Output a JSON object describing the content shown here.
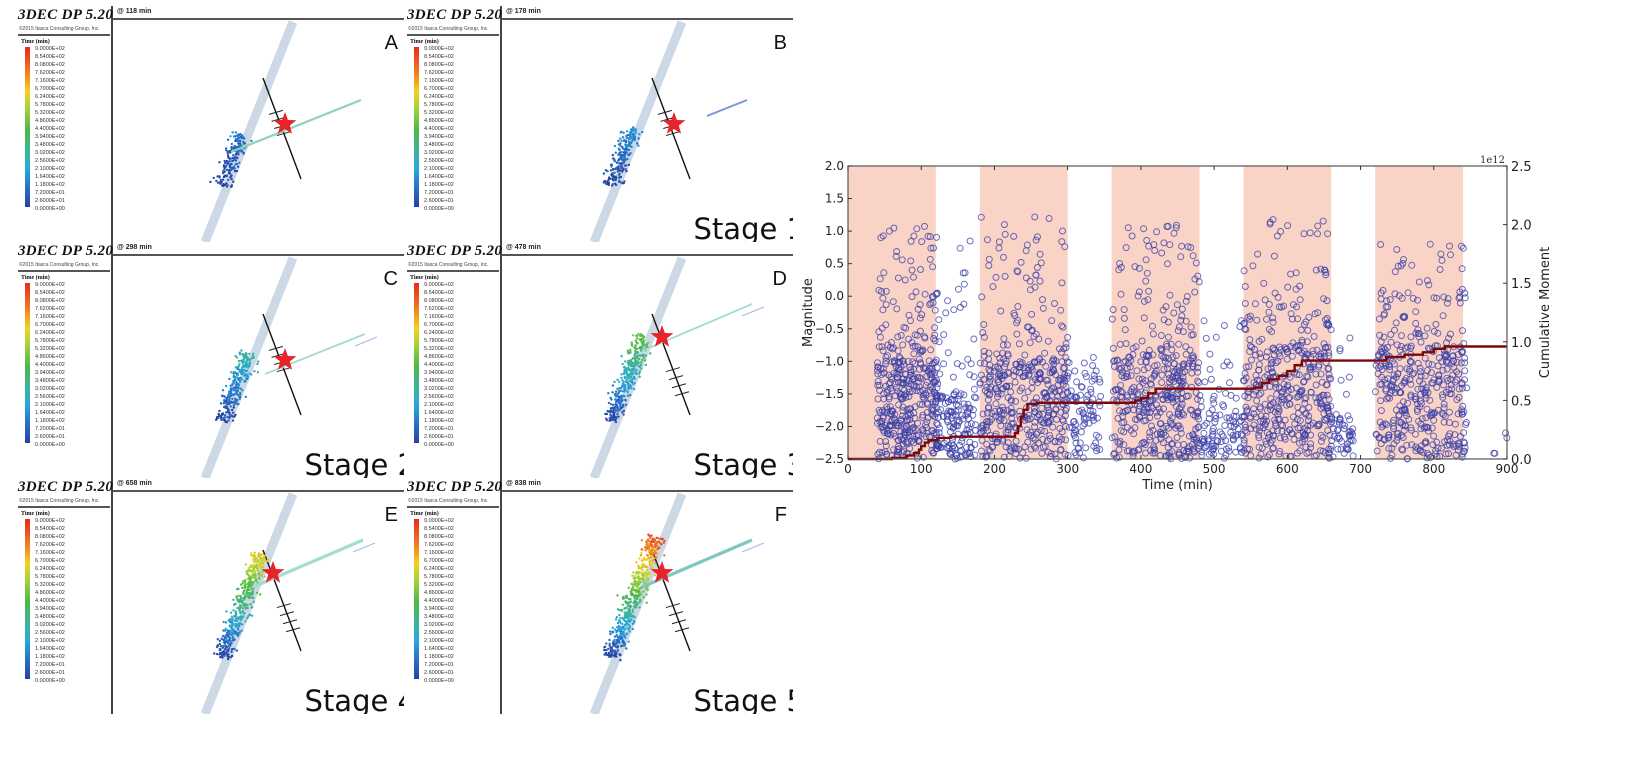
{
  "figure": {
    "software_title": "3DEC  DP 5.20",
    "copyright": "©2015 Itasca Consulting Group, Inc.",
    "legend_heading": "Time (min)",
    "legend_values": [
      "9.0000E+02",
      "8.5400E+02",
      "8.0800E+02",
      "7.6200E+02",
      "7.1600E+02",
      "6.7000E+02",
      "6.2400E+02",
      "5.7800E+02",
      "5.3200E+02",
      "4.8600E+02",
      "4.4000E+02",
      "3.9400E+02",
      "3.4800E+02",
      "3.0200E+02",
      "2.5600E+02",
      "2.1000E+02",
      "1.6400E+02",
      "1.1800E+02",
      "7.2000E+01",
      "2.6000E+01",
      "0.0000E+00"
    ],
    "colors": {
      "star": "#e8232a",
      "fault_band": "#ccd8e6",
      "well": "#111111",
      "scatter_series": "#3a3fa8",
      "cumulative_line": "#7a0a0a",
      "stage_shade": "#f9d4c6"
    },
    "panels": [
      {
        "letter": "A",
        "time_label": "@ 118 min",
        "stage_label": "",
        "progress": 0.13
      },
      {
        "letter": "B",
        "time_label": "@ 178 min",
        "stage_label": "Stage 1",
        "progress": 0.2
      },
      {
        "letter": "C",
        "time_label": "@ 298 min",
        "stage_label": "Stage 2",
        "progress": 0.33
      },
      {
        "letter": "D",
        "time_label": "@ 478 min",
        "stage_label": "Stage 3",
        "progress": 0.53
      },
      {
        "letter": "E",
        "time_label": "@ 658 min",
        "stage_label": "Stage 4",
        "progress": 0.73
      },
      {
        "letter": "F",
        "time_label": "@ 838 min",
        "stage_label": "Stage 5",
        "progress": 0.93
      }
    ]
  },
  "chart_data": {
    "type": "scatter",
    "title": "",
    "xlabel": "Time (min)",
    "ylabel": "Magnitude",
    "y2label": "Cumulative Moment",
    "y2_multiplier_label": "1e12",
    "xlim": [
      0,
      900
    ],
    "ylim": [
      -2.5,
      2.0
    ],
    "y2lim": [
      0.0,
      2.5
    ],
    "xticks": [
      "0",
      "100",
      "200",
      "300",
      "400",
      "500",
      "600",
      "700",
      "800",
      "900"
    ],
    "yticks": [
      "2.0",
      "1.5",
      "1.0",
      "0.5",
      "0.0",
      "−0.5",
      "−1.0",
      "−1.5",
      "−2.0",
      "−2.5"
    ],
    "y2ticks": [
      "2.5",
      "2.0",
      "1.5",
      "1.0",
      "0.5",
      "0.0"
    ],
    "grid": false,
    "injection_periods": [
      [
        0,
        120
      ],
      [
        180,
        300
      ],
      [
        360,
        480
      ],
      [
        540,
        660
      ],
      [
        720,
        840
      ]
    ],
    "series": [
      {
        "name": "Magnitude",
        "marker": "open-circle",
        "clusters": [
          {
            "t_range": [
              40,
              125
            ],
            "mag_range": [
              -2.5,
              1.1
            ],
            "dense_below": -1.0,
            "count": 420
          },
          {
            "t_range": [
              120,
              175
            ],
            "mag_range": [
              -2.5,
              0.85
            ],
            "dense_below": -1.5,
            "count": 150
          },
          {
            "t_range": [
              180,
              300
            ],
            "mag_range": [
              -2.5,
              1.3
            ],
            "dense_below": -1.0,
            "count": 420
          },
          {
            "t_range": [
              295,
              345
            ],
            "mag_range": [
              -2.5,
              -0.85
            ],
            "dense_below": -1.5,
            "count": 90
          },
          {
            "t_range": [
              360,
              480
            ],
            "mag_range": [
              -2.5,
              1.1
            ],
            "dense_below": -0.9,
            "count": 420
          },
          {
            "t_range": [
              475,
              540
            ],
            "mag_range": [
              -2.5,
              -0.35
            ],
            "dense_below": -1.8,
            "count": 110
          },
          {
            "t_range": [
              540,
              660
            ],
            "mag_range": [
              -2.5,
              1.2
            ],
            "dense_below": -0.8,
            "count": 420
          },
          {
            "t_range": [
              655,
              690
            ],
            "mag_range": [
              -2.5,
              -0.5
            ],
            "dense_below": -1.8,
            "count": 60
          },
          {
            "t_range": [
              720,
              845
            ],
            "mag_range": [
              -2.5,
              0.8
            ],
            "dense_below": -0.8,
            "count": 420
          },
          {
            "t_range": [
              880,
              900
            ],
            "mag_range": [
              -2.5,
              -2.1
            ],
            "dense_below": -2.1,
            "count": 4
          }
        ]
      },
      {
        "name": "Cumulative Moment",
        "axis": "right",
        "units": "1e12",
        "step_points": [
          [
            0,
            0.0
          ],
          [
            35,
            0.0
          ],
          [
            60,
            0.01
          ],
          [
            80,
            0.03
          ],
          [
            90,
            0.05
          ],
          [
            97,
            0.08
          ],
          [
            100,
            0.11
          ],
          [
            105,
            0.14
          ],
          [
            110,
            0.16
          ],
          [
            122,
            0.18
          ],
          [
            140,
            0.19
          ],
          [
            225,
            0.19
          ],
          [
            228,
            0.22
          ],
          [
            232,
            0.28
          ],
          [
            236,
            0.36
          ],
          [
            240,
            0.42
          ],
          [
            245,
            0.47
          ],
          [
            258,
            0.48
          ],
          [
            380,
            0.48
          ],
          [
            392,
            0.5
          ],
          [
            400,
            0.52
          ],
          [
            410,
            0.56
          ],
          [
            420,
            0.6
          ],
          [
            500,
            0.6
          ],
          [
            555,
            0.61
          ],
          [
            565,
            0.65
          ],
          [
            575,
            0.68
          ],
          [
            588,
            0.71
          ],
          [
            600,
            0.75
          ],
          [
            610,
            0.8
          ],
          [
            620,
            0.84
          ],
          [
            725,
            0.84
          ],
          [
            735,
            0.87
          ],
          [
            760,
            0.89
          ],
          [
            785,
            0.91
          ],
          [
            800,
            0.94
          ],
          [
            815,
            0.96
          ],
          [
            900,
            0.96
          ]
        ]
      }
    ]
  }
}
